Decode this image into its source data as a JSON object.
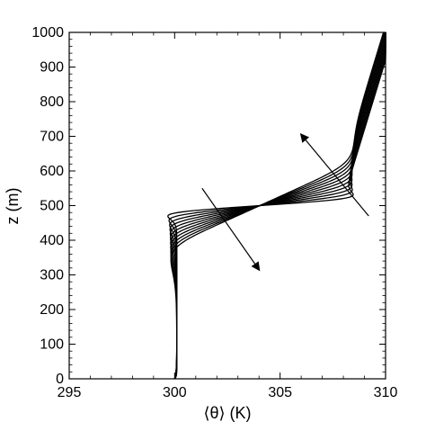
{
  "chart_data": {
    "type": "line",
    "title": "",
    "xlabel": "⟨θ⟩ (K)",
    "ylabel": "z (m)",
    "xlim": [
      295,
      310
    ],
    "ylim": [
      0,
      1000
    ],
    "xticks": [
      295,
      300,
      305,
      310
    ],
    "yticks": [
      0,
      100,
      200,
      300,
      400,
      500,
      600,
      700,
      800,
      900,
      1000
    ],
    "grid": false,
    "legend": "none",
    "line_color": "#000000",
    "family": {
      "count": 11,
      "theta_bottom": 300,
      "theta_inversion_base": 300.1,
      "theta_inversion_top": 308.0,
      "theta_top": 310,
      "lapse_rate_K_per_m": 0.005,
      "inversion_center_m": 500,
      "first_curve": {
        "inversion_half_depth_m": 20,
        "inversion_width_m": 8,
        "surface_layer_depth_m": 6
      },
      "last_curve": {
        "inversion_half_depth_m": 120,
        "inversion_width_m": 30,
        "surface_layer_depth_m": 22
      }
    },
    "annotations": [
      {
        "type": "arrow",
        "from": [
          301.3,
          550
        ],
        "to": [
          304.0,
          315
        ],
        "meaning": "time increasing"
      },
      {
        "type": "arrow",
        "from": [
          309.2,
          470
        ],
        "to": [
          306.0,
          705
        ],
        "meaning": "time increasing"
      }
    ]
  }
}
